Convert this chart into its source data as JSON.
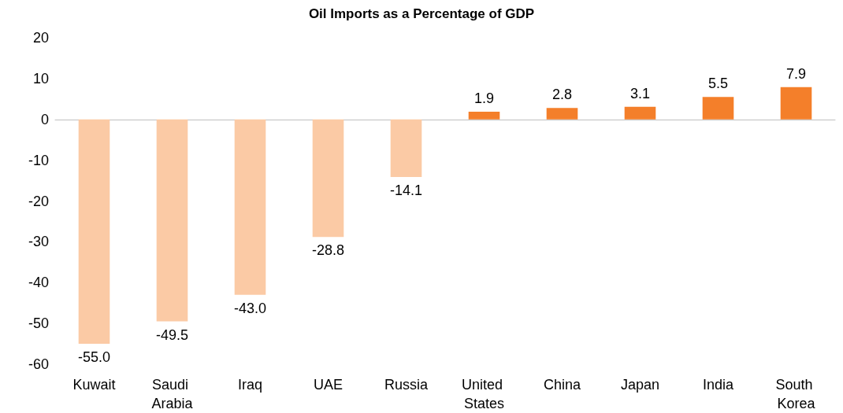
{
  "chart_data": {
    "type": "bar",
    "title": "Oil Imports as a Percentage of GDP",
    "categories": [
      "Kuwait",
      "Saudi Arabia",
      "Iraq",
      "UAE",
      "Russia",
      "United States",
      "China",
      "Japan",
      "India",
      "South Korea"
    ],
    "values": [
      -55.0,
      -49.5,
      -43.0,
      -28.8,
      -14.1,
      1.9,
      2.8,
      3.1,
      5.5,
      7.9
    ],
    "colors": [
      "#fbcaa5",
      "#fbcaa5",
      "#fbcaa5",
      "#fbcaa5",
      "#fbcaa5",
      "#f47f2a",
      "#f47f2a",
      "#f47f2a",
      "#f47f2a",
      "#f47f2a"
    ],
    "ylim": [
      -60,
      20
    ],
    "yticks": [
      -60,
      -50,
      -40,
      -30,
      -20,
      -10,
      0,
      10,
      20
    ],
    "value_labels": [
      "-55.0",
      "-49.5",
      "-43.0",
      "-28.8",
      "-14.1",
      "1.9",
      "2.8",
      "3.1",
      "5.5",
      "7.9"
    ]
  }
}
